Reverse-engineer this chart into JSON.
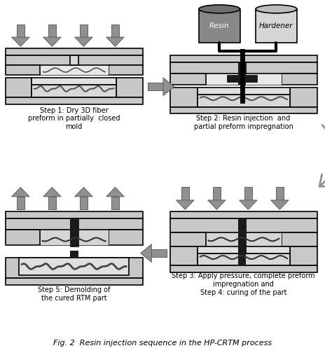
{
  "title": "Fig. 2  Resin injection sequence in the HP-CRTM process",
  "background_color": "#ffffff",
  "arrow_color": "#909090",
  "mold_color": "#c8c8c8",
  "mold_outline": "#000000",
  "resin_label": "Resin",
  "hardener_label": "Hardener",
  "step1_label": "Step 1: Dry 3D fiber\npreform in partially  closed\nmold",
  "step2_label": "Step 2: Resin injection  and\npartial preform impregnation",
  "step3_label": "Step 3: Apply pressure, complete preform\nimpregnation and\nStep 4: curing of the part",
  "step5_label": "Step 5: Demolding of\nthe cured RTM part",
  "fig_caption": "Fig. 2  Resin injection sequence in the HP-CRTM process"
}
